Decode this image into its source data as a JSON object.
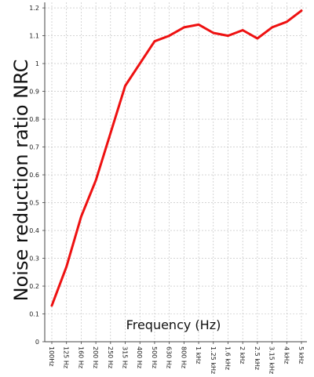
{
  "chart_data": {
    "type": "line",
    "title": "",
    "xlabel": "Frequency (Hz)",
    "ylabel": "Noise reduction ratio NRC",
    "categories": [
      "100Hz",
      "125 Hz",
      "160 Hz",
      "200 Hz",
      "250 Hz",
      "315 Hz",
      "400 Hz",
      "500 Hz",
      "630 Hz",
      "800 Hz",
      "1 kHz",
      "1.25 kHz",
      "1.6 kHz",
      "2 kHz",
      "2.5 kHz",
      "3.15 kHz",
      "4 kHz",
      "5 kHz"
    ],
    "yticks": [
      "0",
      "0.1",
      "0.2",
      "0.3",
      "0.4",
      "0.5",
      "0.6",
      "0.7",
      "0.8",
      "0.9",
      "1",
      "1.1",
      "1.2"
    ],
    "ylim": [
      0,
      1.22
    ],
    "grid": true,
    "legend": "none",
    "series": [
      {
        "color": "#ee1111",
        "values": [
          0.13,
          0.27,
          0.45,
          0.58,
          0.75,
          0.92,
          1.0,
          1.08,
          1.1,
          1.13,
          1.14,
          1.11,
          1.1,
          1.12,
          1.09,
          1.13,
          1.15,
          1.19
        ]
      }
    ]
  }
}
